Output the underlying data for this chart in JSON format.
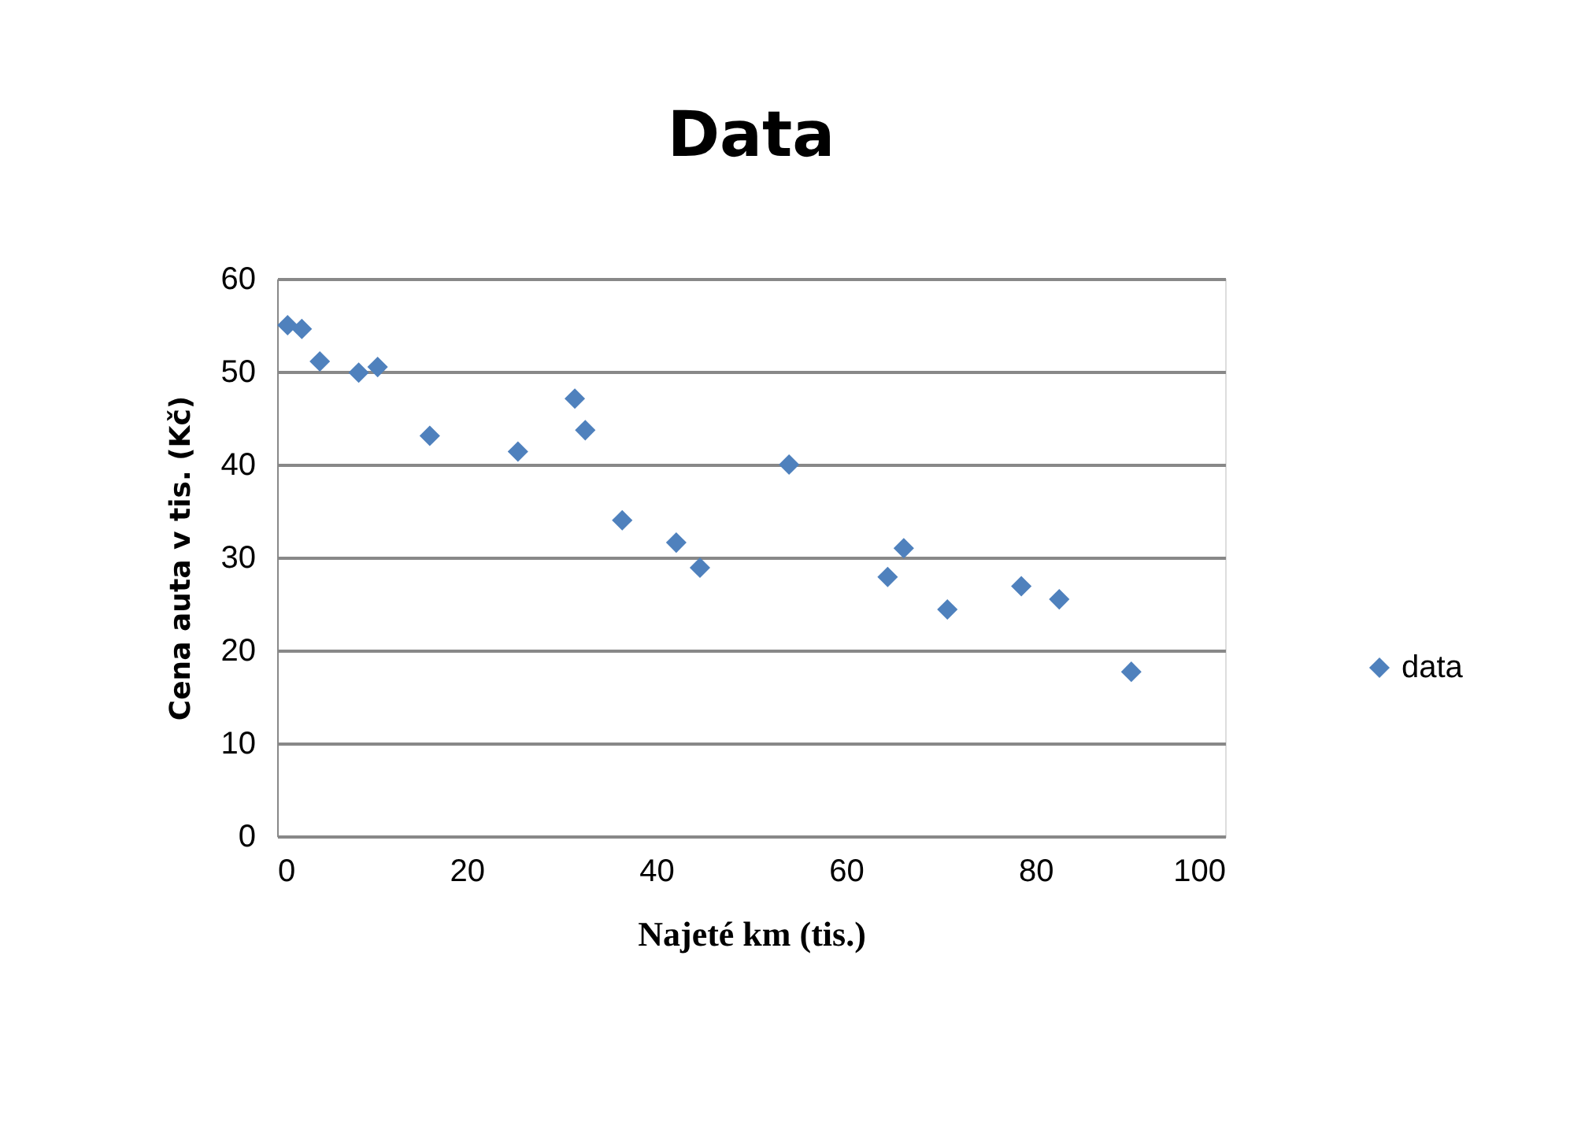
{
  "chart_data": {
    "type": "scatter",
    "title": "Data",
    "xlabel": "Najeté km (tis.)",
    "ylabel": "Cena auta v tis. (Kč)",
    "x": [
      1.1,
      2.6,
      4.5,
      8.6,
      10.6,
      16.1,
      25.4,
      31.4,
      32.5,
      36.4,
      42.1,
      44.6,
      54.0,
      64.4,
      66.1,
      70.7,
      78.5,
      82.5,
      90.1
    ],
    "series": [
      {
        "name": "data",
        "color": "#4f81bd",
        "values": [
          55.0,
          54.6,
          51.1,
          49.9,
          50.5,
          43.1,
          41.4,
          47.1,
          43.7,
          34.0,
          31.6,
          28.9,
          40.0,
          27.9,
          31.0,
          24.4,
          26.9,
          25.5,
          17.7
        ]
      }
    ],
    "xlim": [
      0,
      100
    ],
    "xticks": [
      0,
      20,
      40,
      60,
      80,
      100
    ],
    "ylim": [
      0,
      60
    ],
    "yticks": [
      0,
      10,
      20,
      30,
      40,
      50,
      60
    ],
    "grid": "y",
    "legend": "right",
    "marker": "diamond"
  }
}
